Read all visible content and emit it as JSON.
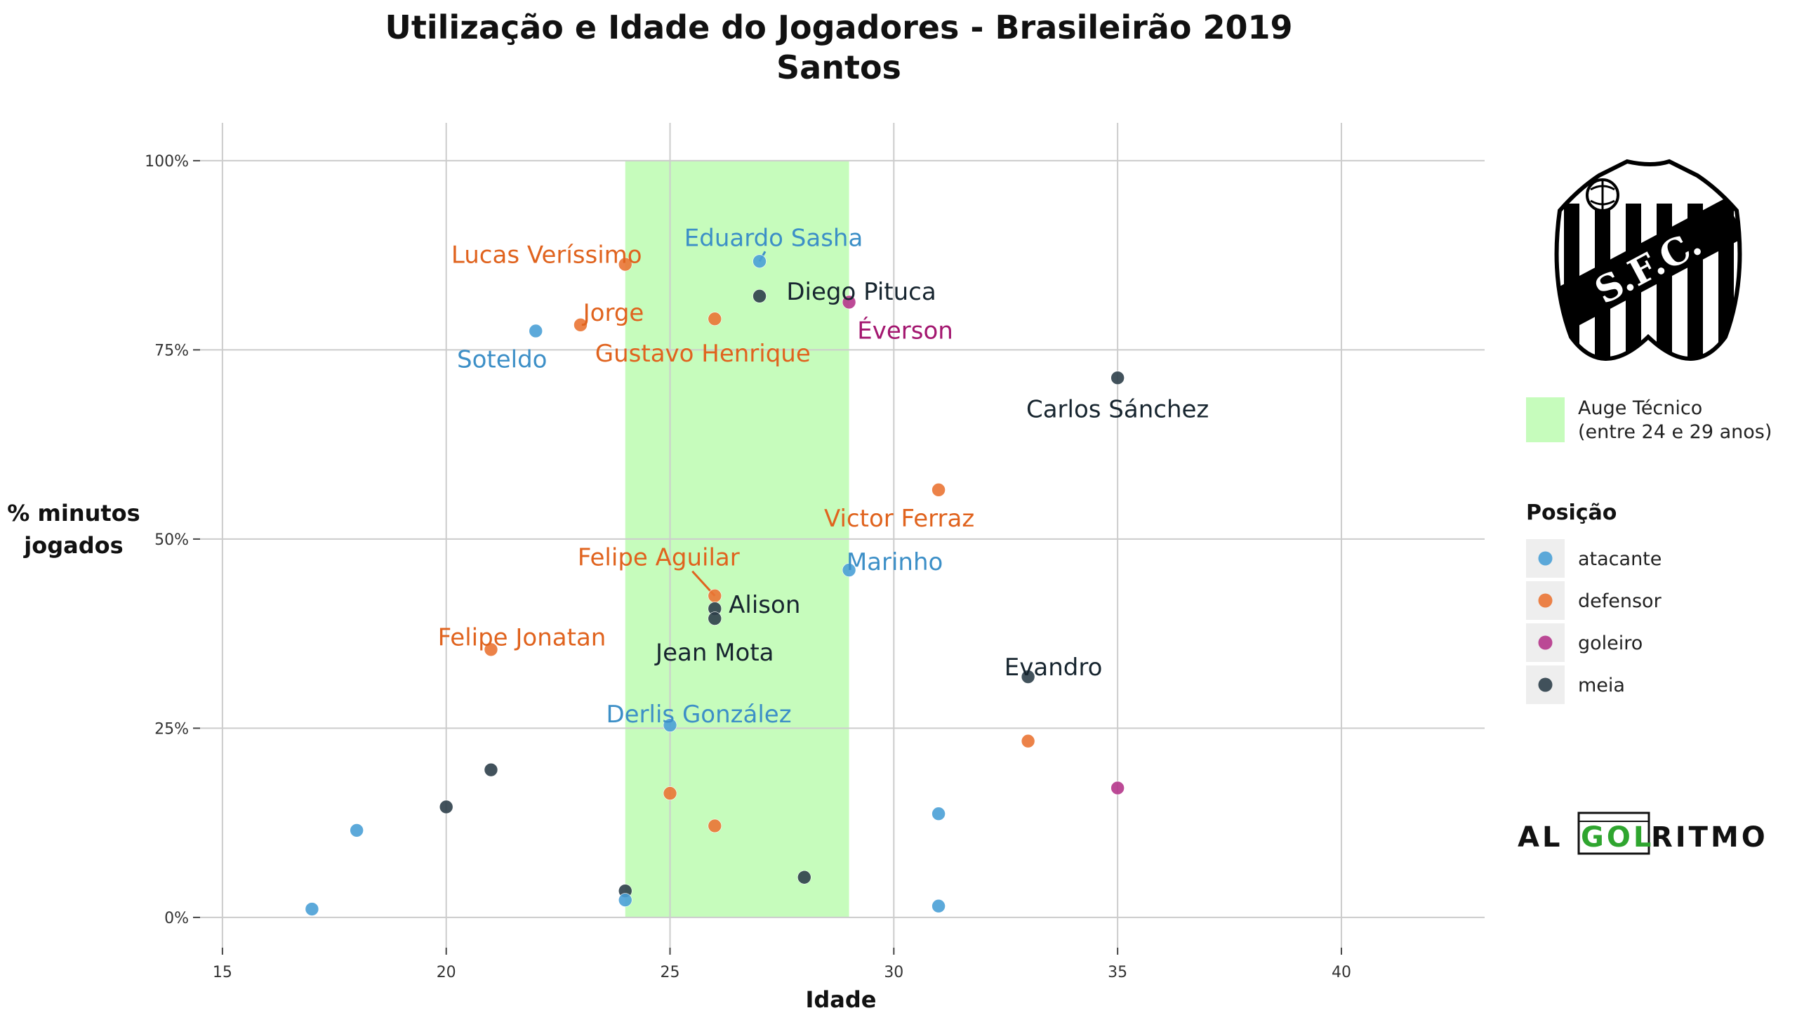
{
  "chart_data": {
    "type": "scatter",
    "title": "Utilização e Idade do Jogadores - Brasileirão 2019",
    "subtitle": "Santos",
    "xlabel": "Idade",
    "ylabel": [
      "% minutos",
      "jogados"
    ],
    "xlim": [
      14.5,
      43.2
    ],
    "ylim": [
      -0.04,
      1.05
    ],
    "x_ticks": [
      15,
      20,
      25,
      30,
      35,
      40
    ],
    "y_ticks": [
      {
        "value": 0,
        "label": "0%"
      },
      {
        "value": 0.25,
        "label": "25%"
      },
      {
        "value": 0.5,
        "label": "50%"
      },
      {
        "value": 0.75,
        "label": "75%"
      },
      {
        "value": 1.0,
        "label": "100%"
      }
    ],
    "grid": true,
    "shaded_region": {
      "x": [
        24,
        29
      ],
      "y": [
        0,
        1.0
      ],
      "color": "#c6fcbc",
      "label": "Auge Técnico",
      "label2": "(entre 24 e 29 anos)"
    },
    "legend": {
      "title": "Posição",
      "placement": "right",
      "entries": [
        {
          "key": "atacante",
          "label": "atacante",
          "color": "#4aa0d6"
        },
        {
          "key": "defensor",
          "label": "defensor",
          "color": "#ea7434"
        },
        {
          "key": "goleiro",
          "label": "goleiro",
          "color": "#b5368b"
        },
        {
          "key": "meia",
          "label": "meia",
          "color": "#2e3f4a"
        }
      ]
    },
    "label_colors": {
      "atacante": "#3c8fc7",
      "defensor": "#e0631e",
      "goleiro": "#a3166f",
      "meia": "#17252f"
    },
    "points": [
      {
        "x": 22,
        "y": 0.775,
        "pos": "atacante",
        "label": "Soteldo"
      },
      {
        "x": 23,
        "y": 0.783,
        "pos": "defensor",
        "label": "Jorge"
      },
      {
        "x": 24,
        "y": 0.863,
        "pos": "defensor",
        "label": "Lucas Veríssimo"
      },
      {
        "x": 27,
        "y": 0.867,
        "pos": "atacante",
        "label": "Eduardo Sasha"
      },
      {
        "x": 27,
        "y": 0.821,
        "pos": "meia",
        "label": "Diego Pituca"
      },
      {
        "x": 26,
        "y": 0.791,
        "pos": "defensor",
        "label": "Gustavo Henrique"
      },
      {
        "x": 29,
        "y": 0.813,
        "pos": "goleiro",
        "label": "Éverson"
      },
      {
        "x": 35,
        "y": 0.713,
        "pos": "meia",
        "label": "Carlos Sánchez"
      },
      {
        "x": 31,
        "y": 0.565,
        "pos": "defensor",
        "label": "Victor Ferraz"
      },
      {
        "x": 29,
        "y": 0.459,
        "pos": "atacante",
        "label": "Marinho"
      },
      {
        "x": 26,
        "y": 0.425,
        "pos": "defensor",
        "label": "Felipe Aguilar"
      },
      {
        "x": 26,
        "y": 0.408,
        "pos": "meia",
        "label": "Alison"
      },
      {
        "x": 26,
        "y": 0.395,
        "pos": "meia",
        "label": "Jean Mota"
      },
      {
        "x": 21,
        "y": 0.354,
        "pos": "defensor",
        "label": "Felipe Jonatan"
      },
      {
        "x": 33,
        "y": 0.318,
        "pos": "meia",
        "label": "Evandro"
      },
      {
        "x": 25,
        "y": 0.254,
        "pos": "atacante",
        "label": "Derlis González"
      },
      {
        "x": 33,
        "y": 0.233,
        "pos": "defensor",
        "label": ""
      },
      {
        "x": 35,
        "y": 0.171,
        "pos": "goleiro",
        "label": ""
      },
      {
        "x": 21,
        "y": 0.195,
        "pos": "meia",
        "label": ""
      },
      {
        "x": 25,
        "y": 0.164,
        "pos": "defensor",
        "label": ""
      },
      {
        "x": 20,
        "y": 0.146,
        "pos": "meia",
        "label": ""
      },
      {
        "x": 31,
        "y": 0.137,
        "pos": "atacante",
        "label": ""
      },
      {
        "x": 26,
        "y": 0.121,
        "pos": "defensor",
        "label": ""
      },
      {
        "x": 18,
        "y": 0.115,
        "pos": "atacante",
        "label": ""
      },
      {
        "x": 28,
        "y": 0.053,
        "pos": "meia",
        "label": ""
      },
      {
        "x": 24,
        "y": 0.035,
        "pos": "meia",
        "label": ""
      },
      {
        "x": 24,
        "y": 0.023,
        "pos": "atacante",
        "label": ""
      },
      {
        "x": 31,
        "y": 0.015,
        "pos": "atacante",
        "label": ""
      },
      {
        "x": 17,
        "y": 0.011,
        "pos": "atacante",
        "label": ""
      }
    ]
  },
  "branding": {
    "club_logo": "santos-sfc-crest",
    "club_monogram": "S.F.C.",
    "brand_left": "AL",
    "brand_mid": "GOL",
    "brand_right": "RITMO",
    "brand_accent": "#2fa52f"
  }
}
